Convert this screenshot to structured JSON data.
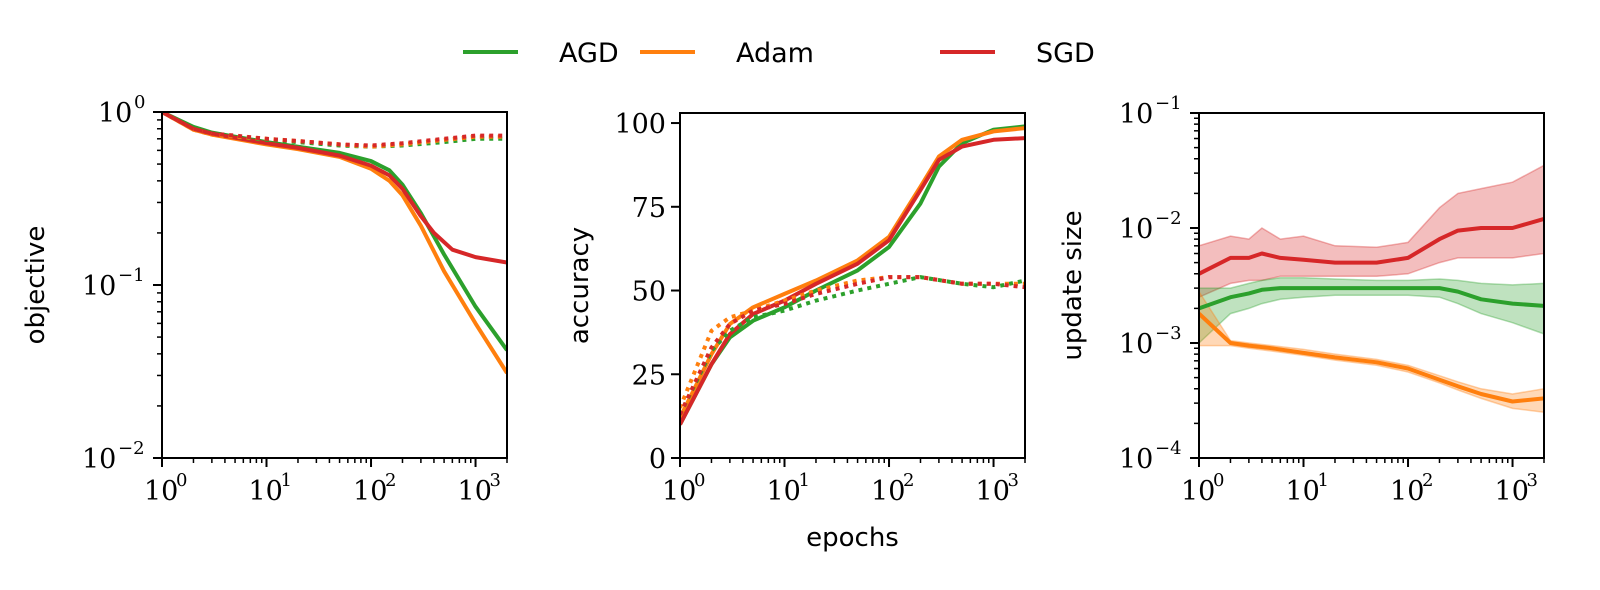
{
  "legend": [
    {
      "name": "AGD",
      "color": "#2ca02c"
    },
    {
      "name": "Adam",
      "color": "#ff7f0e"
    },
    {
      "name": "SGD",
      "color": "#d62728"
    }
  ],
  "chart_data": [
    {
      "type": "line",
      "title": "",
      "xlabel": "",
      "ylabel": "objective",
      "xscale": "log",
      "yscale": "log",
      "xlim": [
        1,
        2000
      ],
      "ylim": [
        0.01,
        1
      ],
      "xticks": [
        {
          "base": "10",
          "exp": "0"
        },
        {
          "base": "10",
          "exp": "1"
        },
        {
          "base": "10",
          "exp": "2"
        },
        {
          "base": "10",
          "exp": "3"
        }
      ],
      "yticks": [
        {
          "base": "10",
          "exp": "0",
          "v": 1
        },
        {
          "base": "10",
          "exp": "−1",
          "v": 0.1
        },
        {
          "base": "10",
          "exp": "−2",
          "v": 0.01
        }
      ],
      "series": [
        {
          "name": "AGD",
          "color": "#2ca02c",
          "style": "solid",
          "x": [
            1,
            2,
            3,
            5,
            10,
            20,
            50,
            100,
            150,
            200,
            300,
            500,
            1000,
            2000
          ],
          "y": [
            1,
            0.82,
            0.76,
            0.72,
            0.67,
            0.63,
            0.58,
            0.52,
            0.46,
            0.38,
            0.26,
            0.15,
            0.075,
            0.042
          ]
        },
        {
          "name": "Adam",
          "color": "#ff7f0e",
          "style": "solid",
          "x": [
            1,
            2,
            3,
            5,
            10,
            20,
            50,
            100,
            150,
            200,
            300,
            500,
            1000,
            2000
          ],
          "y": [
            1,
            0.79,
            0.74,
            0.7,
            0.65,
            0.61,
            0.55,
            0.47,
            0.4,
            0.33,
            0.22,
            0.12,
            0.06,
            0.031
          ]
        },
        {
          "name": "SGD",
          "color": "#d62728",
          "style": "solid",
          "x": [
            1,
            2,
            3,
            5,
            10,
            20,
            50,
            100,
            150,
            200,
            300,
            400,
            600,
            1000,
            2000
          ],
          "y": [
            1,
            0.8,
            0.75,
            0.71,
            0.66,
            0.62,
            0.56,
            0.49,
            0.43,
            0.36,
            0.25,
            0.2,
            0.16,
            0.145,
            0.135
          ]
        },
        {
          "name": "AGD",
          "color": "#2ca02c",
          "style": "dotted",
          "x": [
            1,
            2,
            3,
            5,
            10,
            20,
            50,
            100,
            200,
            500,
            1000,
            2000
          ],
          "y": [
            1,
            0.8,
            0.75,
            0.72,
            0.69,
            0.67,
            0.64,
            0.63,
            0.64,
            0.67,
            0.7,
            0.7
          ]
        },
        {
          "name": "Adam",
          "color": "#ff7f0e",
          "style": "dotted",
          "x": [
            1,
            2,
            3,
            5,
            10,
            20,
            50,
            100,
            200,
            500,
            1000,
            2000
          ],
          "y": [
            1,
            0.79,
            0.74,
            0.72,
            0.7,
            0.68,
            0.65,
            0.63,
            0.65,
            0.69,
            0.72,
            0.72
          ]
        },
        {
          "name": "SGD",
          "color": "#d62728",
          "style": "dotted",
          "x": [
            1,
            2,
            3,
            5,
            10,
            20,
            50,
            100,
            200,
            500,
            1000,
            2000
          ],
          "y": [
            1,
            0.8,
            0.75,
            0.73,
            0.7,
            0.68,
            0.65,
            0.64,
            0.66,
            0.7,
            0.73,
            0.73
          ]
        }
      ]
    },
    {
      "type": "line",
      "title": "",
      "xlabel": "epochs",
      "ylabel": "accuracy",
      "xscale": "log",
      "yscale": "linear",
      "xlim": [
        1,
        2000
      ],
      "ylim": [
        0,
        103
      ],
      "xticks": [
        {
          "base": "10",
          "exp": "0"
        },
        {
          "base": "10",
          "exp": "1"
        },
        {
          "base": "10",
          "exp": "2"
        },
        {
          "base": "10",
          "exp": "3"
        }
      ],
      "yticks": [
        {
          "label": "0",
          "v": 0
        },
        {
          "label": "25",
          "v": 25
        },
        {
          "label": "50",
          "v": 50
        },
        {
          "label": "75",
          "v": 75
        },
        {
          "label": "100",
          "v": 100
        }
      ],
      "series": [
        {
          "name": "AGD",
          "color": "#2ca02c",
          "style": "solid",
          "x": [
            1,
            2,
            3,
            5,
            10,
            20,
            50,
            100,
            200,
            300,
            500,
            1000,
            2000
          ],
          "y": [
            10,
            28,
            36,
            41,
            45,
            50,
            56,
            63,
            76,
            87,
            94,
            98,
            99
          ]
        },
        {
          "name": "Adam",
          "color": "#ff7f0e",
          "style": "solid",
          "x": [
            1,
            2,
            3,
            5,
            10,
            20,
            50,
            100,
            200,
            300,
            500,
            1000,
            2000
          ],
          "y": [
            12,
            31,
            40,
            45,
            49,
            53,
            59,
            66,
            81,
            90,
            95,
            97.5,
            98.5
          ]
        },
        {
          "name": "SGD",
          "color": "#d62728",
          "style": "solid",
          "x": [
            1,
            2,
            3,
            5,
            10,
            20,
            50,
            100,
            200,
            300,
            500,
            1000,
            2000
          ],
          "y": [
            10,
            28,
            37,
            43,
            47,
            52,
            58,
            65,
            80,
            89,
            93,
            95,
            95.5
          ]
        },
        {
          "name": "AGD",
          "color": "#2ca02c",
          "style": "dotted",
          "x": [
            1,
            2,
            3,
            5,
            10,
            20,
            50,
            100,
            200,
            500,
            1000,
            2000
          ],
          "y": [
            13,
            32,
            38,
            42,
            44,
            47,
            50,
            52,
            54,
            52,
            51,
            53
          ]
        },
        {
          "name": "Adam",
          "color": "#ff7f0e",
          "style": "dotted",
          "x": [
            1,
            2,
            3,
            5,
            10,
            20,
            50,
            100,
            200,
            500,
            1000,
            2000
          ],
          "y": [
            15,
            38,
            42,
            44,
            47,
            50,
            53,
            54,
            54,
            52,
            52,
            52
          ]
        },
        {
          "name": "SGD",
          "color": "#d62728",
          "style": "dotted",
          "x": [
            1,
            2,
            3,
            5,
            10,
            20,
            50,
            100,
            200,
            500,
            1000,
            2000
          ],
          "y": [
            13,
            33,
            40,
            44,
            46,
            49,
            52,
            54,
            54,
            52,
            52,
            51
          ]
        }
      ]
    },
    {
      "type": "area",
      "title": "",
      "xlabel": "",
      "ylabel": "update size",
      "xscale": "log",
      "yscale": "log",
      "xlim": [
        1,
        2000
      ],
      "ylim": [
        0.0001,
        0.1
      ],
      "xticks": [
        {
          "base": "10",
          "exp": "0"
        },
        {
          "base": "10",
          "exp": "1"
        },
        {
          "base": "10",
          "exp": "2"
        },
        {
          "base": "10",
          "exp": "3"
        }
      ],
      "yticks": [
        {
          "base": "10",
          "exp": "−1",
          "v": 0.1
        },
        {
          "base": "10",
          "exp": "−2",
          "v": 0.01
        },
        {
          "base": "10",
          "exp": "−3",
          "v": 0.001
        },
        {
          "base": "10",
          "exp": "−4",
          "v": 0.0001
        }
      ],
      "series": [
        {
          "name": "SGD",
          "color": "#d62728",
          "x": [
            1,
            2,
            3,
            4,
            6,
            10,
            20,
            50,
            100,
            200,
            300,
            500,
            1000,
            2000
          ],
          "y": [
            0.004,
            0.0055,
            0.0055,
            0.006,
            0.0055,
            0.0053,
            0.005,
            0.005,
            0.0055,
            0.008,
            0.0095,
            0.01,
            0.01,
            0.012
          ],
          "lower": [
            0.0025,
            0.0033,
            0.0035,
            0.0035,
            0.0038,
            0.0038,
            0.0038,
            0.0038,
            0.004,
            0.005,
            0.0055,
            0.0055,
            0.0055,
            0.006
          ],
          "upper": [
            0.007,
            0.0085,
            0.008,
            0.01,
            0.008,
            0.0085,
            0.007,
            0.0068,
            0.0075,
            0.015,
            0.02,
            0.022,
            0.025,
            0.035
          ]
        },
        {
          "name": "AGD",
          "color": "#2ca02c",
          "x": [
            1,
            2,
            3,
            4,
            6,
            10,
            20,
            50,
            100,
            200,
            300,
            500,
            1000,
            2000
          ],
          "y": [
            0.002,
            0.0025,
            0.0027,
            0.0029,
            0.003,
            0.003,
            0.003,
            0.003,
            0.003,
            0.003,
            0.0028,
            0.0024,
            0.0022,
            0.0021
          ],
          "lower": [
            0.001,
            0.0018,
            0.002,
            0.0022,
            0.0024,
            0.0025,
            0.0026,
            0.0026,
            0.0026,
            0.0025,
            0.0022,
            0.0018,
            0.0015,
            0.0012
          ],
          "upper": [
            0.003,
            0.003,
            0.0033,
            0.0035,
            0.0037,
            0.0037,
            0.0036,
            0.0035,
            0.0035,
            0.0036,
            0.0035,
            0.0033,
            0.0032,
            0.0033
          ]
        },
        {
          "name": "Adam",
          "color": "#ff7f0e",
          "x": [
            1,
            2,
            3,
            5,
            10,
            20,
            50,
            100,
            200,
            300,
            500,
            1000,
            2000
          ],
          "y": [
            0.0018,
            0.001,
            0.00095,
            0.0009,
            0.00082,
            0.00075,
            0.00068,
            0.0006,
            0.00048,
            0.00042,
            0.00036,
            0.00031,
            0.00033
          ],
          "lower": [
            0.00095,
            0.00095,
            0.0009,
            0.00085,
            0.00078,
            0.00071,
            0.00064,
            0.00056,
            0.00045,
            0.00039,
            0.00033,
            0.00027,
            0.00025
          ],
          "upper": [
            0.0028,
            0.00105,
            0.001,
            0.00095,
            0.00088,
            0.0008,
            0.00072,
            0.00064,
            0.00052,
            0.00046,
            0.0004,
            0.00036,
            0.0004
          ]
        }
      ]
    }
  ]
}
